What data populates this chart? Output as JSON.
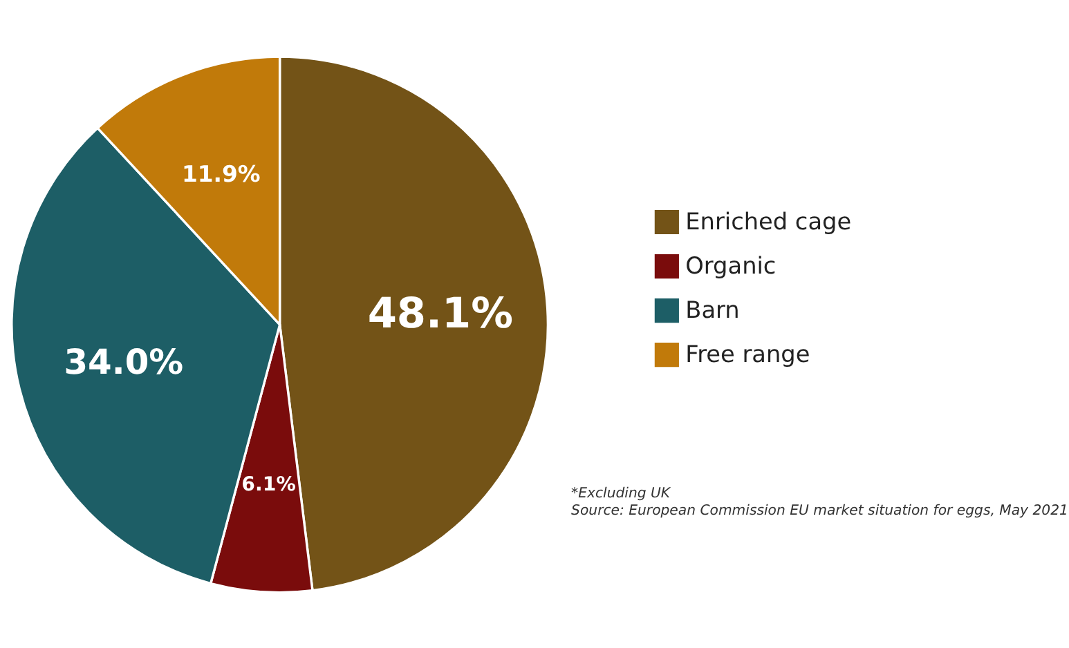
{
  "chart_data": {
    "type": "pie",
    "categories": [
      "Enriched cage",
      "Organic",
      "Barn",
      "Free range"
    ],
    "values": [
      48.1,
      6.1,
      34.0,
      11.9
    ],
    "colors": [
      "#735317",
      "#7a0c0c",
      "#1d5e66",
      "#c17a0a"
    ],
    "value_labels": [
      "48.1%",
      "6.1%",
      "34.0%",
      "11.9%"
    ],
    "legend": "right",
    "annotations": [
      "*Excluding UK",
      "Source: European Commission EU market situation for eggs, May 2021"
    ]
  }
}
